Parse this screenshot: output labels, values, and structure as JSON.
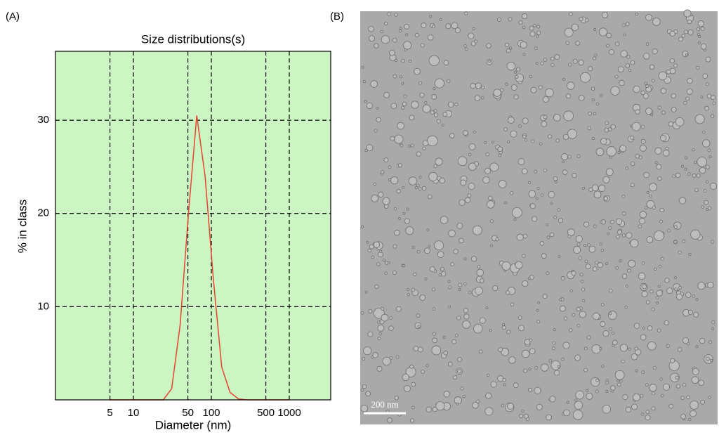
{
  "panel_labels": [
    "(A)",
    "(B)"
  ],
  "chart_data": {
    "type": "line",
    "title": "Size distributions(s)",
    "x_label": "Diameter (nm)",
    "y_label": "% in class",
    "x_scale": "log",
    "grid": true,
    "xlim": [
      1,
      3400
    ],
    "xticks": [
      5,
      10,
      50,
      100,
      500,
      1000
    ],
    "ylim": [
      0,
      37.4
    ],
    "yticks": [
      10,
      20,
      30
    ],
    "x": [
      5,
      7,
      9,
      11.5,
      14.8,
      18.9,
      24.2,
      31,
      39.7,
      50.8,
      65,
      83.2,
      106,
      136,
      174,
      223,
      285,
      365,
      467,
      598,
      765,
      980
    ],
    "series": [
      {
        "color": "#e8432e",
        "values": [
          0,
          0,
          0,
          0,
          0,
          0,
          0,
          1.2,
          8,
          20,
          30.5,
          24,
          13,
          3.5,
          0.8,
          0.1,
          0,
          0,
          0,
          0,
          0,
          0
        ]
      }
    ]
  },
  "image": {
    "scale_bar": "200 nm"
  }
}
